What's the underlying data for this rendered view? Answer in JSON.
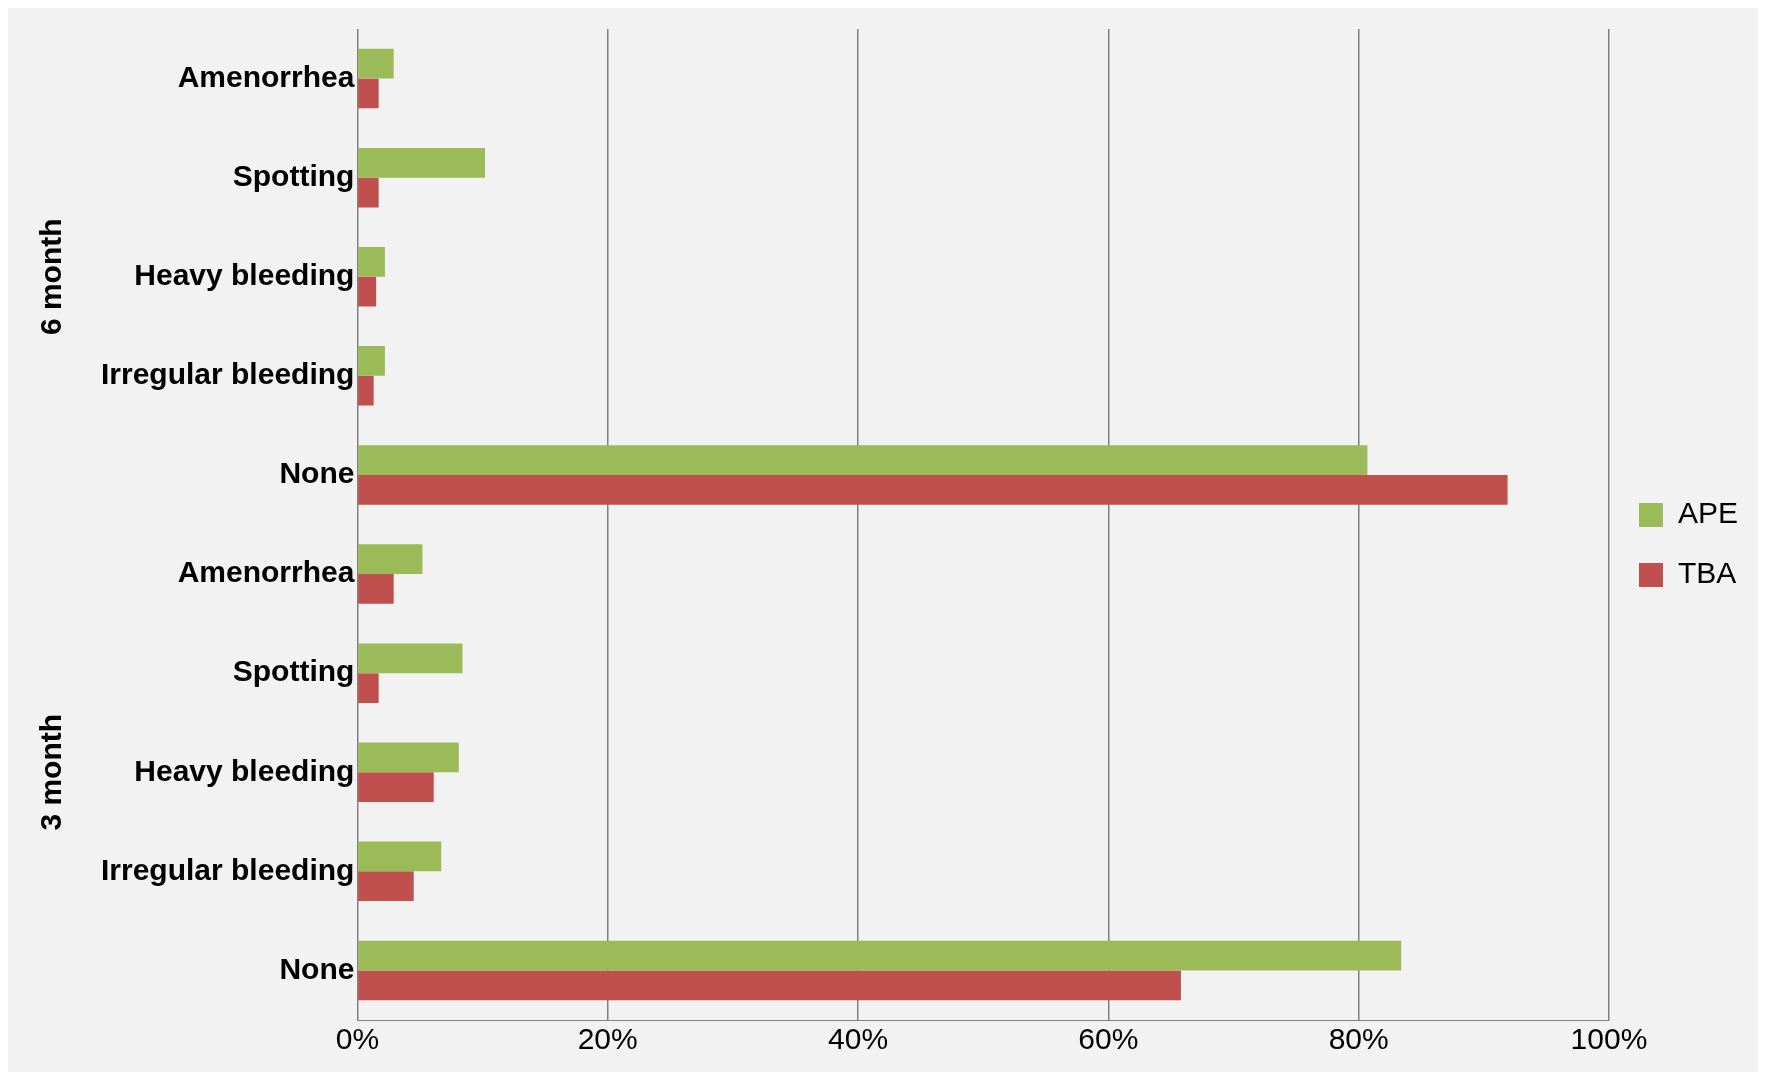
{
  "chart_data": {
    "type": "bar",
    "orientation": "horizontal",
    "categories": [
      "Amenorrhea",
      "Spotting",
      "Heavy bleeding",
      "Irregular bleeding",
      "None",
      "Amenorrhea",
      "Spotting",
      "Heavy bleeding",
      "Irregular bleeding",
      "None"
    ],
    "series": [
      {
        "name": "APE",
        "color": "#9bbb59",
        "values": [
          2.9,
          10.2,
          2.2,
          2.2,
          80.7,
          5.2,
          8.4,
          8.1,
          6.7,
          83.4
        ]
      },
      {
        "name": "TBA",
        "color": "#c0504d",
        "values": [
          1.7,
          1.7,
          1.5,
          1.3,
          91.9,
          2.9,
          1.7,
          6.1,
          4.5,
          65.8
        ]
      }
    ],
    "xlim": [
      0,
      100
    ],
    "xticks": [
      {
        "value": 0,
        "label": "0%"
      },
      {
        "value": 20,
        "label": "20%"
      },
      {
        "value": 40,
        "label": "40%"
      },
      {
        "value": 60,
        "label": "60%"
      },
      {
        "value": 80,
        "label": "80%"
      },
      {
        "value": 100,
        "label": "100%"
      }
    ],
    "annotations": [
      "6 month",
      "3 month"
    ],
    "grid": "x",
    "legend": "right"
  }
}
